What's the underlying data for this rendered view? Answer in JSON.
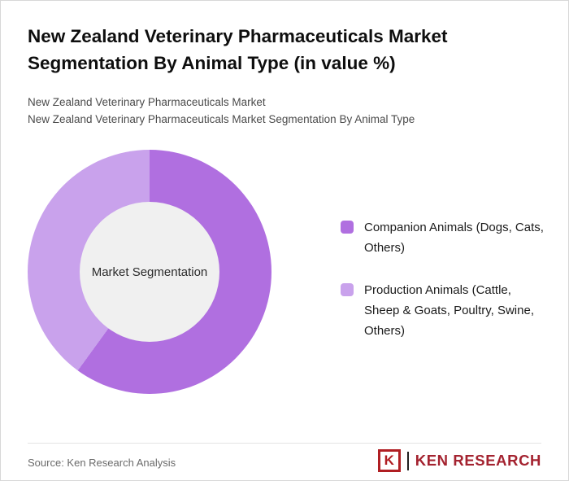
{
  "header": {
    "title_line1": "New Zealand Veterinary Pharmaceuticals Market",
    "title_line2": "Segmentation By Animal Type (in value %)",
    "subtitle_line1": "New Zealand Veterinary Pharmaceuticals Market",
    "subtitle_line2": "New Zealand Veterinary Pharmaceuticals Market Segmentation By Animal Type"
  },
  "chart_data": {
    "type": "pie",
    "subtype": "donut",
    "title": "New Zealand Veterinary Pharmaceuticals Market Segmentation By Animal Type (in value %)",
    "center_label": "Market Segmentation",
    "start_angle_deg": 0,
    "legend_position": "right",
    "series": [
      {
        "name": "Companion Animals (Dogs, Cats, Others)",
        "value": 60,
        "color": "#b06fe0"
      },
      {
        "name": "Production Animals (Cattle, Sheep & Goats, Poultry, Swine, Others)",
        "value": 40,
        "color": "#c9a2ec"
      }
    ],
    "hole_color": "#f0f0f0"
  },
  "footer": {
    "source": "Source: Ken Research Analysis",
    "logo_icon_letter": "K",
    "logo_text": "KEN RESEARCH"
  }
}
